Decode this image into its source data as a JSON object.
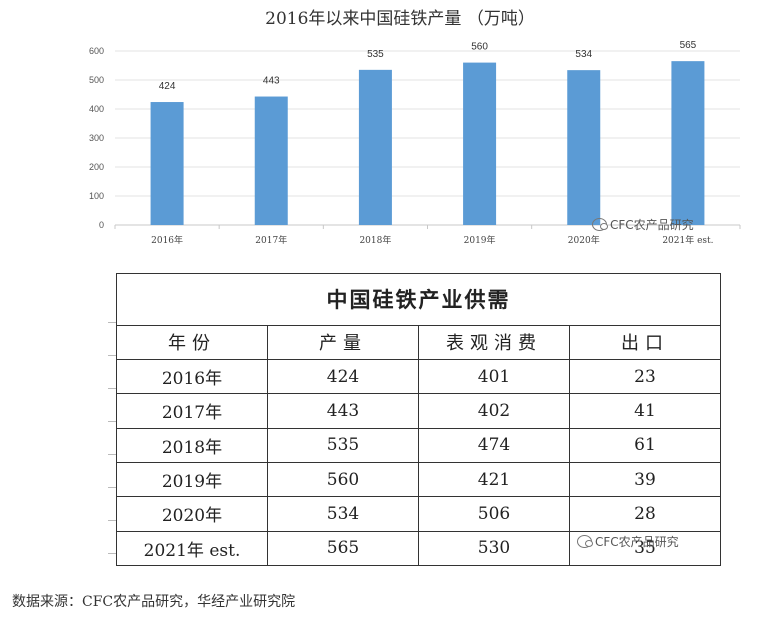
{
  "chart_data": {
    "type": "bar",
    "title": "2016年以来中国硅铁产量 （万吨）",
    "categories": [
      "2016年",
      "2017年",
      "2018年",
      "2019年",
      "2020年",
      "2021年 est."
    ],
    "values": [
      424,
      443,
      535,
      560,
      534,
      565
    ],
    "ylim": [
      0,
      600
    ],
    "yticks": [
      0,
      100,
      200,
      300,
      400,
      500,
      600
    ],
    "grid": true,
    "bar_color": "#5B9BD5",
    "xlabel": "",
    "ylabel": ""
  },
  "watermark": {
    "text": "CFC农产品研究"
  },
  "table": {
    "title": "中国硅铁产业供需",
    "headers": [
      "年份",
      "产量",
      "表观消费",
      "出口"
    ],
    "rows": [
      [
        "2016年",
        "424",
        "401",
        "23"
      ],
      [
        "2017年",
        "443",
        "402",
        "41"
      ],
      [
        "2018年",
        "535",
        "474",
        "61"
      ],
      [
        "2019年",
        "560",
        "421",
        "39"
      ],
      [
        "2020年",
        "534",
        "506",
        "28"
      ],
      [
        "2021年 est.",
        "565",
        "530",
        "35"
      ]
    ]
  },
  "source": "数据来源：CFC农产品研究，华经产业研究院"
}
